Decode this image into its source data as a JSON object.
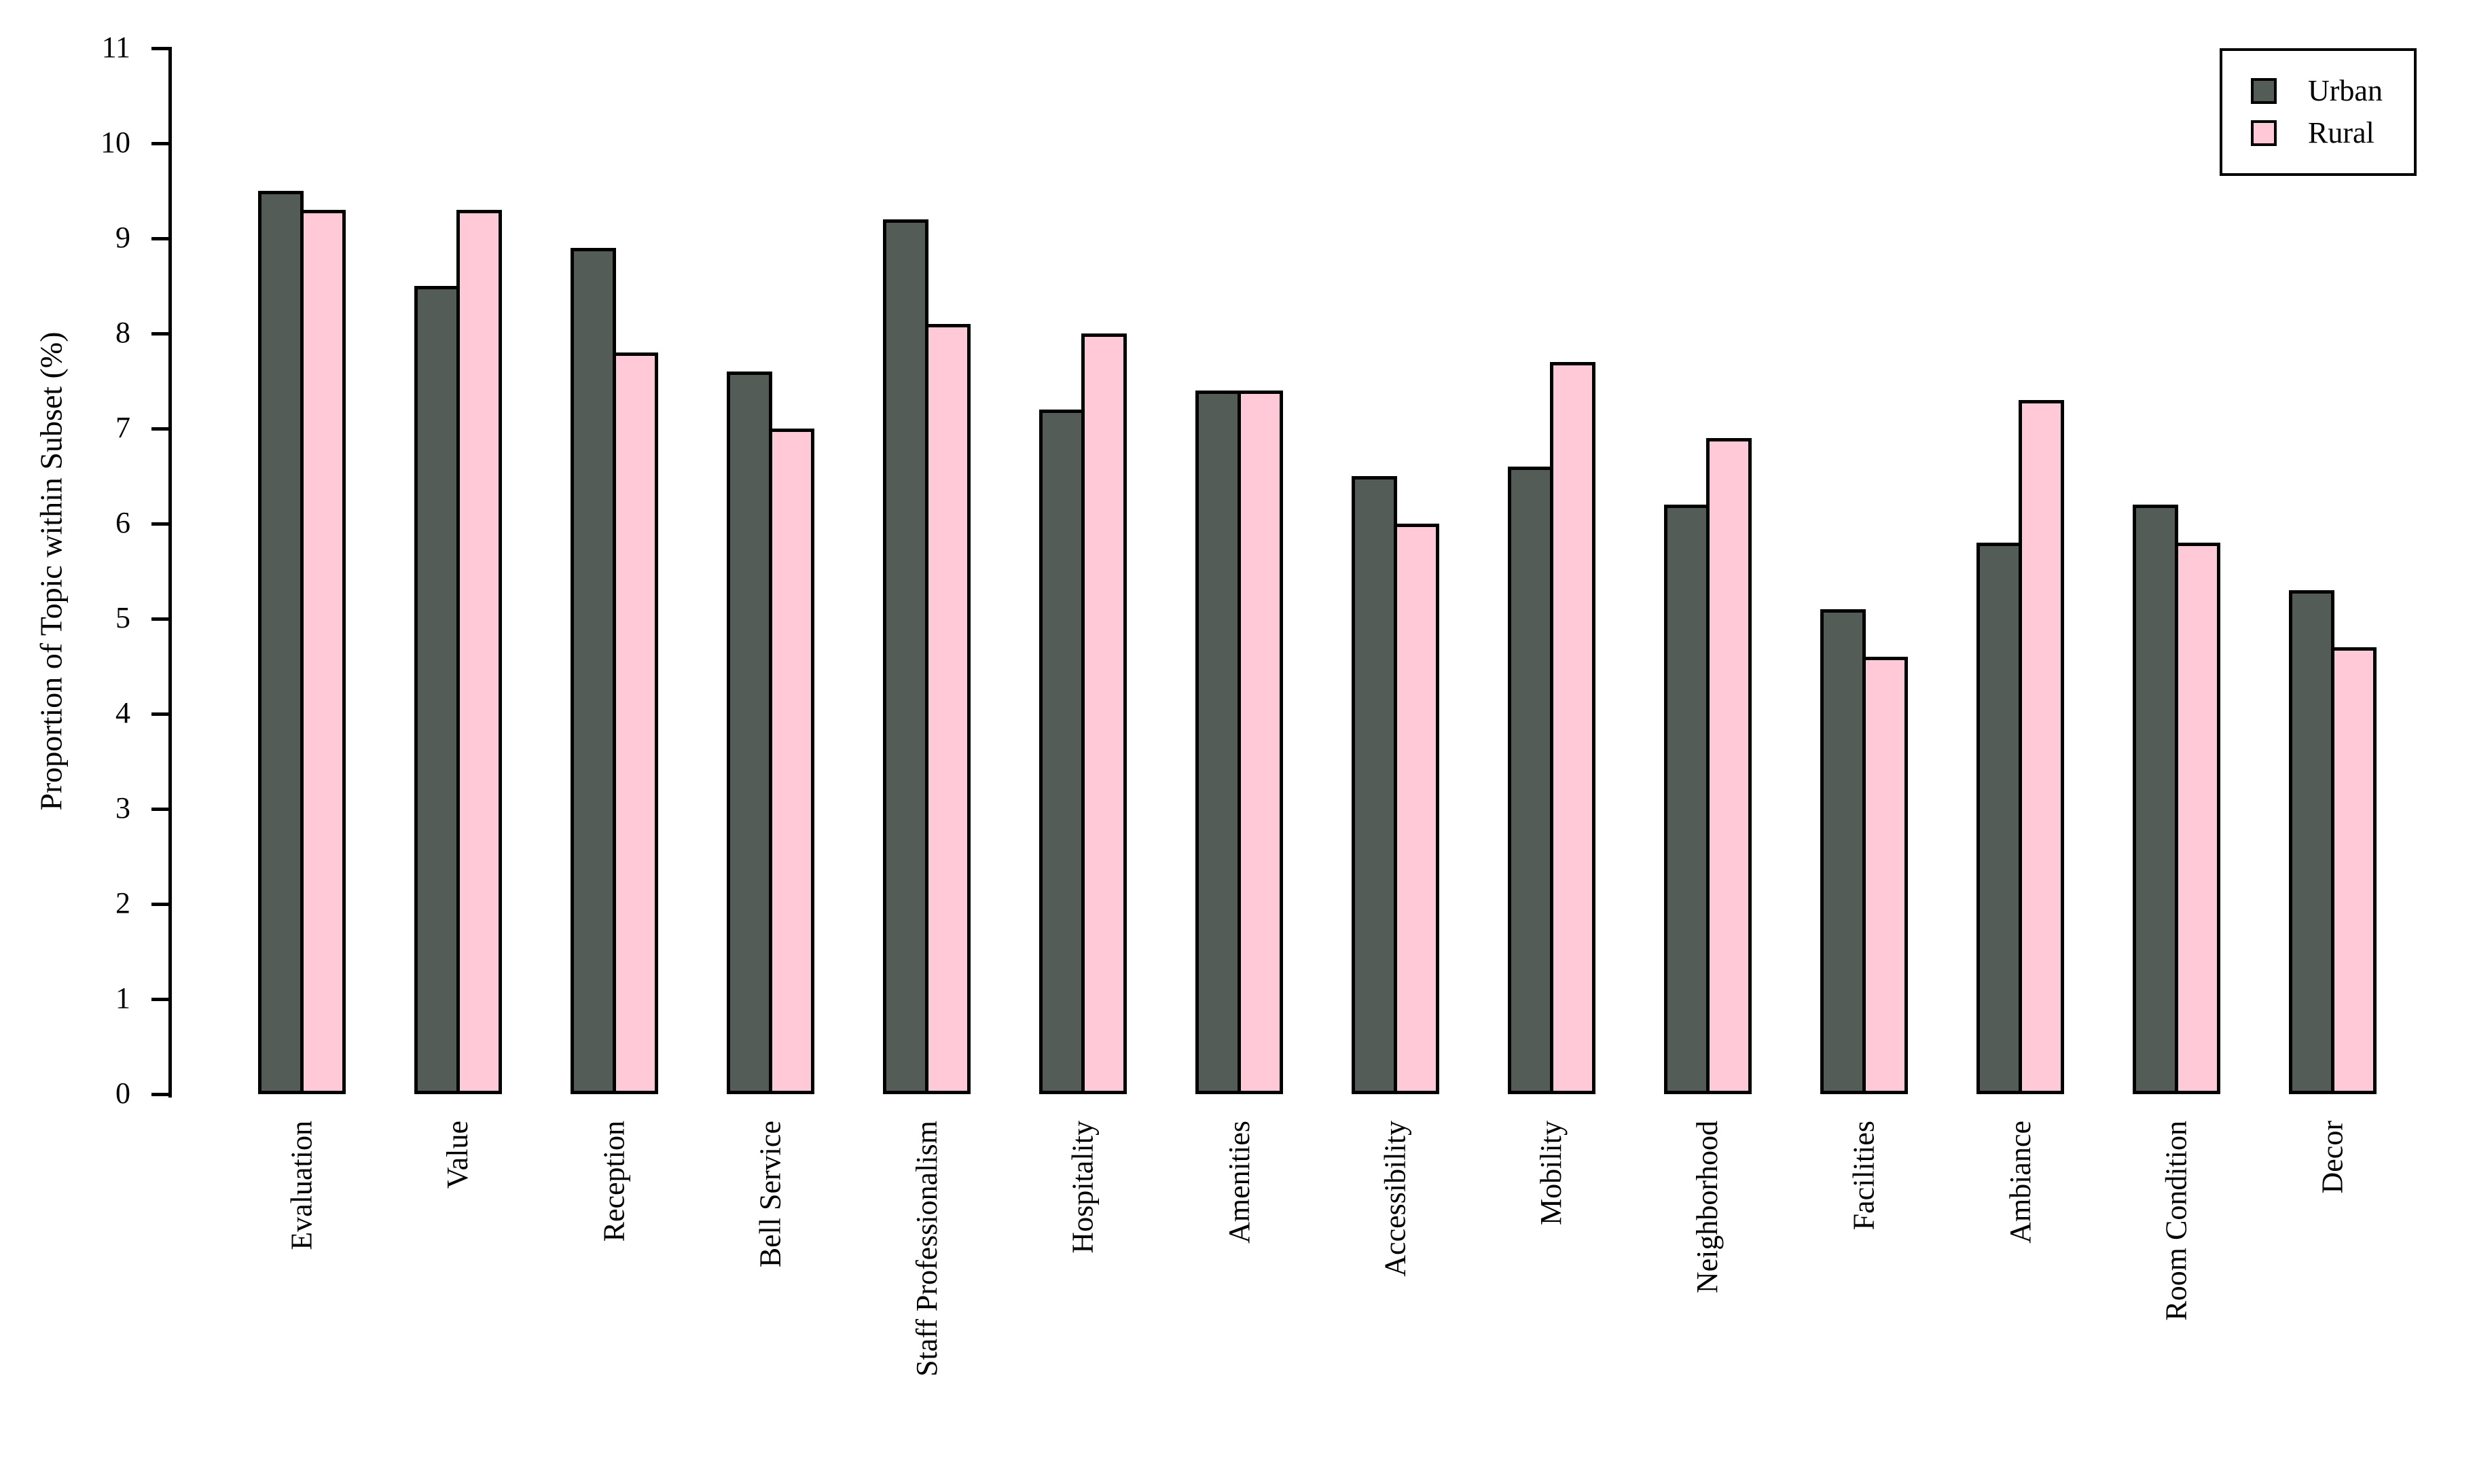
{
  "chart_data": {
    "type": "bar",
    "title": "",
    "xlabel": "",
    "ylabel": "Proportion of Topic within Subset (%)",
    "ylim": [
      0,
      11
    ],
    "yticks": [
      0,
      1,
      2,
      3,
      4,
      5,
      6,
      7,
      8,
      9,
      10,
      11
    ],
    "grid": false,
    "legend_position": "top-right",
    "categories": [
      "Evaluation",
      "Value",
      "Reception",
      "Bell Service",
      "Staff Professionalism",
      "Hospitality",
      "Amenities",
      "Accessibility",
      "Mobility",
      "Neighborhood",
      "Facilities",
      "Ambiance",
      "Room Condition",
      "Decor"
    ],
    "series": [
      {
        "name": "Urban",
        "color": "#545C57",
        "values": [
          9.5,
          8.5,
          8.9,
          7.6,
          9.2,
          7.2,
          7.4,
          6.5,
          6.6,
          6.2,
          5.1,
          5.8,
          6.2,
          5.3
        ]
      },
      {
        "name": "Rural",
        "color": "#FFC9D7",
        "values": [
          9.3,
          9.3,
          7.8,
          7.0,
          8.1,
          8.0,
          7.4,
          6.0,
          7.7,
          6.9,
          4.6,
          7.3,
          5.8,
          4.7
        ]
      }
    ],
    "bar_border_color": "#000000",
    "background_color": "#FFFFFF"
  }
}
